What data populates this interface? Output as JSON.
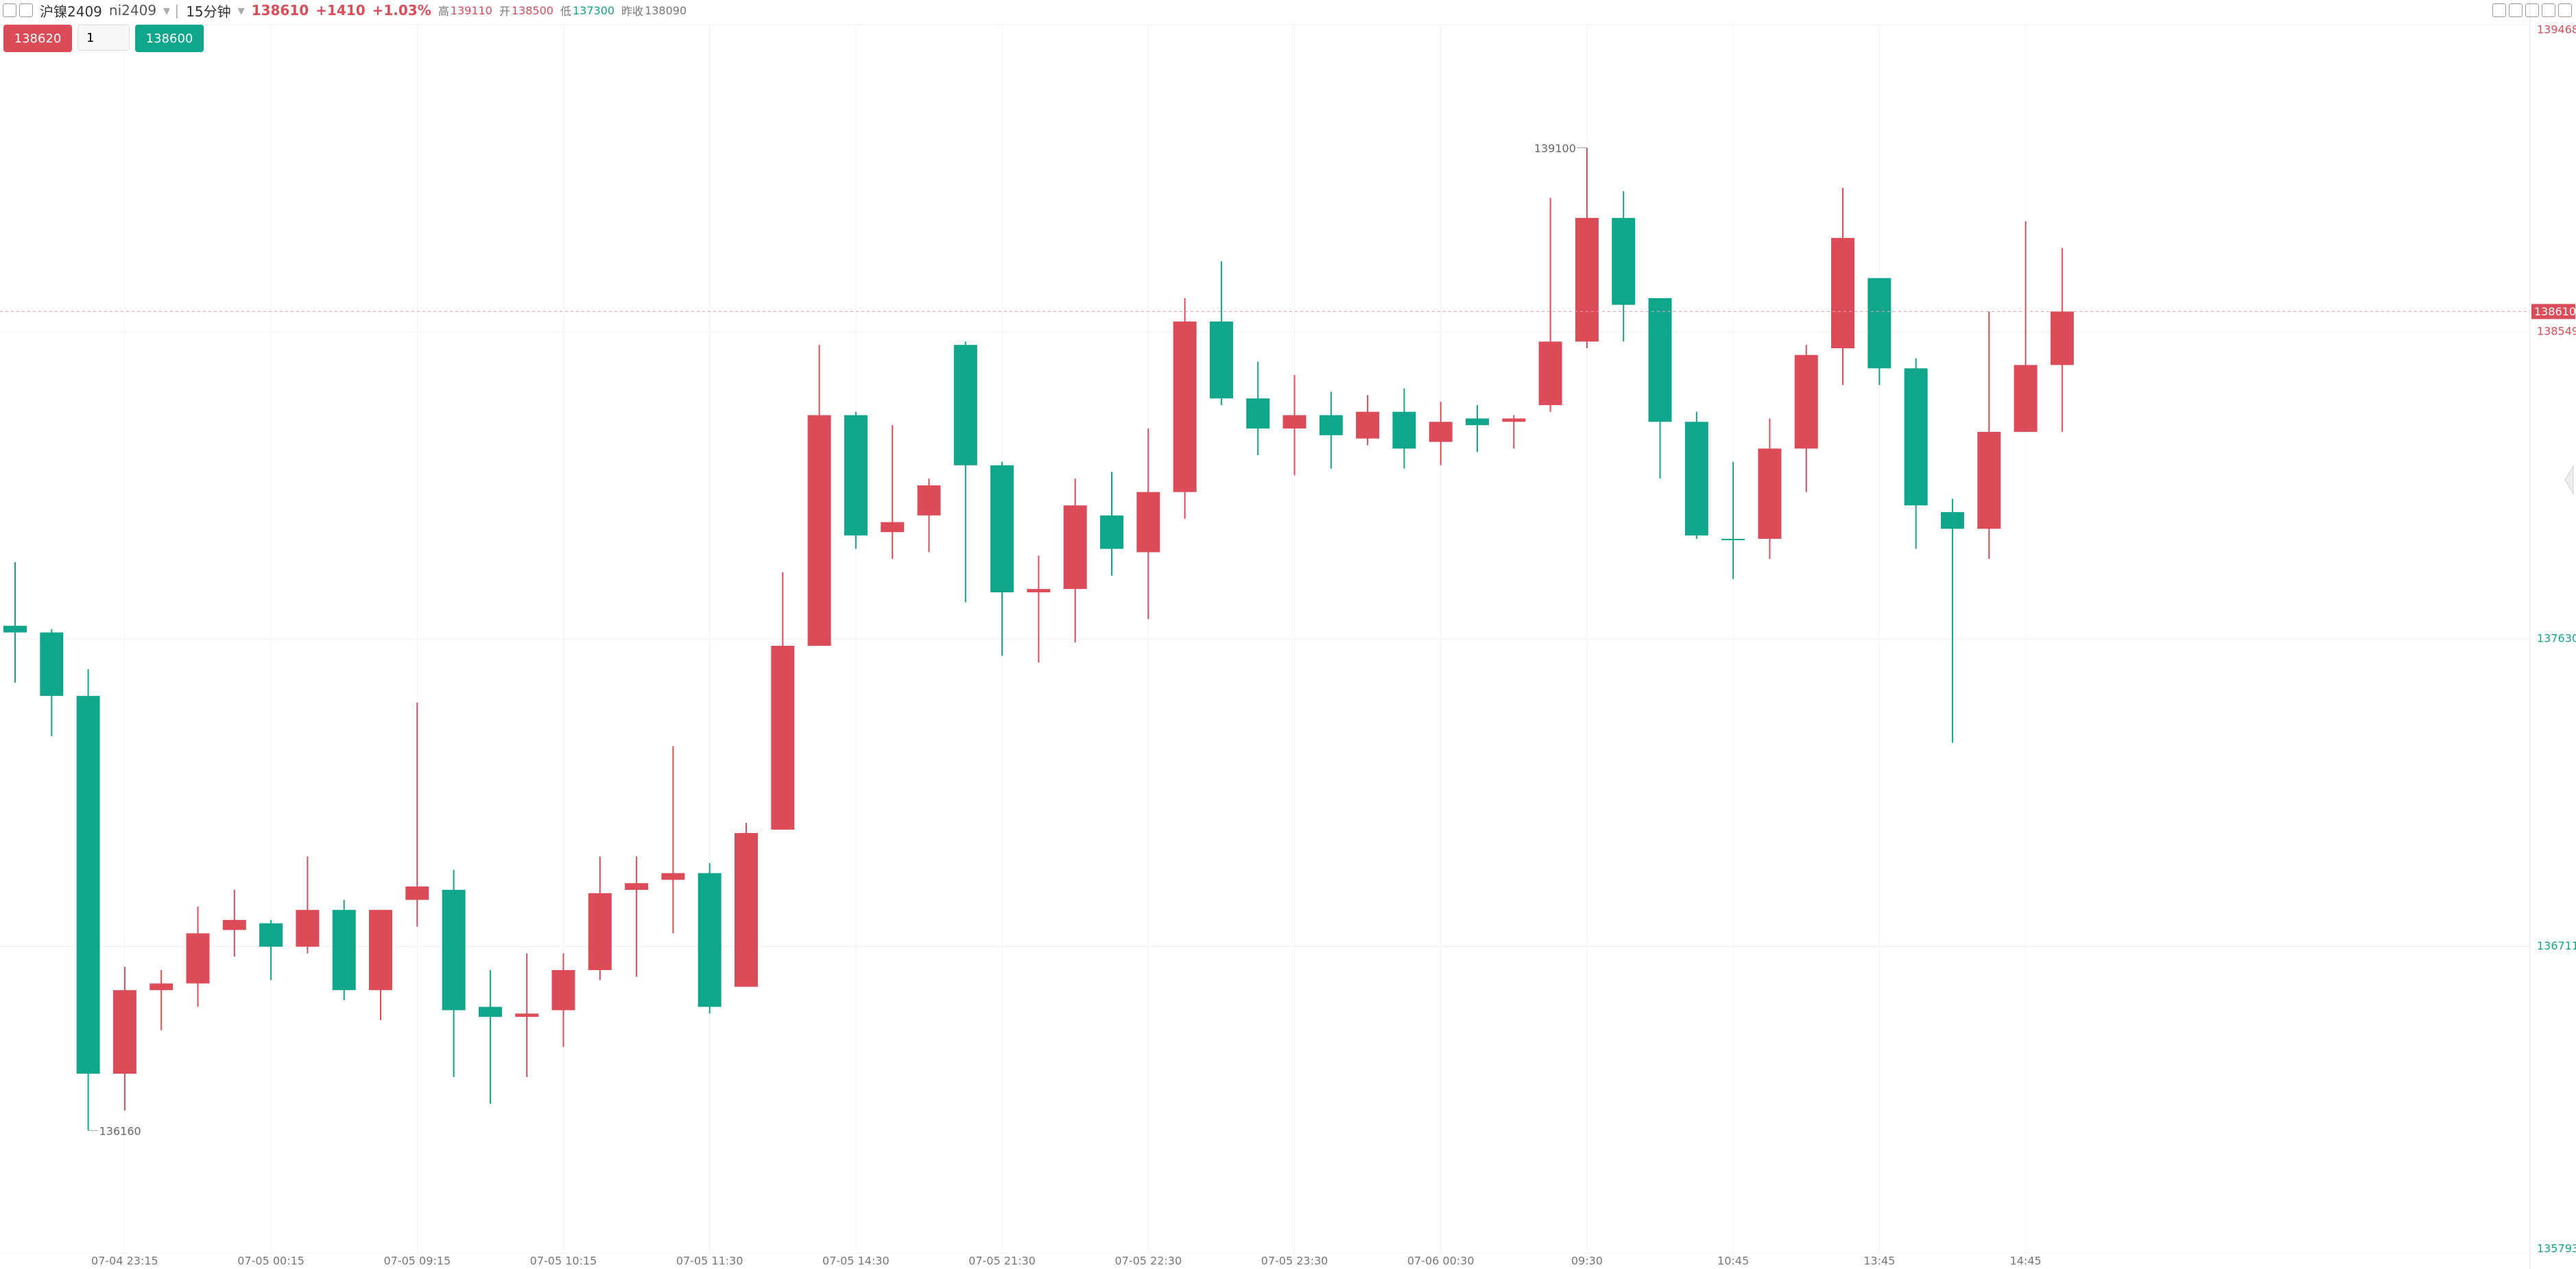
{
  "toolbar": {
    "symbol_name": "沪镍2409",
    "symbol_code": "ni2409",
    "period": "15分钟",
    "last": "138610",
    "change": "+1410",
    "change_pct": "+1.03%",
    "high_label": "高",
    "high": "139110",
    "open_label": "开",
    "open": "138500",
    "low_label": "低",
    "low": "137300",
    "prev_close_label": "昨收",
    "prev_close": "138090",
    "sell_button": "138620",
    "quantity": "1",
    "buy_button": "138600"
  },
  "chart_data": {
    "type": "candlestick",
    "up_color": "#dc4c58",
    "down_color": "#10a68c",
    "categories": [
      null,
      null,
      null,
      "07-04 23:15",
      null,
      null,
      null,
      "07-05 00:15",
      null,
      null,
      null,
      "07-05 09:15",
      null,
      null,
      null,
      "07-05 10:15",
      null,
      null,
      null,
      "07-05 11:30",
      null,
      null,
      null,
      "07-05 14:30",
      null,
      null,
      null,
      "07-05 21:30",
      null,
      null,
      null,
      "07-05 22:30",
      null,
      null,
      null,
      "07-05 23:30",
      null,
      null,
      null,
      "07-06 00:30",
      null,
      null,
      null,
      "09:30",
      null,
      null,
      null,
      "10:45",
      null,
      null,
      null,
      "13:45",
      null,
      null,
      null,
      "14:45",
      null
    ],
    "open": [
      137670,
      137650,
      137460,
      136330,
      136580,
      136600,
      136760,
      136780,
      136710,
      136820,
      136580,
      136850,
      136880,
      136530,
      136500,
      136520,
      136640,
      136880,
      136910,
      136930,
      136590,
      137060,
      137610,
      138300,
      137950,
      138000,
      138510,
      138150,
      137770,
      137780,
      138000,
      137890,
      138070,
      138580,
      138350,
      138260,
      138300,
      138230,
      138310,
      138220,
      138290,
      138280,
      138330,
      138520,
      138890,
      138650,
      138280,
      137930,
      137930,
      138200,
      138500,
      138710,
      138440,
      138010,
      137960,
      138250,
      138450
    ],
    "high": [
      137860,
      137660,
      137540,
      136650,
      136640,
      136830,
      136880,
      136790,
      136980,
      136850,
      136820,
      137440,
      136940,
      136640,
      136690,
      136690,
      136980,
      136980,
      137310,
      136960,
      137080,
      137830,
      138510,
      138310,
      138270,
      138110,
      138520,
      138160,
      137880,
      138110,
      138130,
      138260,
      138650,
      138760,
      138460,
      138420,
      138370,
      138360,
      138380,
      138340,
      138330,
      138300,
      138950,
      139100,
      138970,
      138650,
      138310,
      138160,
      138290,
      138510,
      138980,
      138710,
      138470,
      138050,
      138610,
      138880,
      138800
    ],
    "low": [
      137500,
      137340,
      136160,
      136220,
      136460,
      136530,
      136680,
      136610,
      136690,
      136550,
      136490,
      136770,
      136320,
      136240,
      136320,
      136410,
      136610,
      136620,
      136750,
      136510,
      136590,
      137060,
      137610,
      137900,
      137870,
      137890,
      137740,
      137580,
      137560,
      137620,
      137820,
      137690,
      137990,
      138330,
      138180,
      138120,
      138140,
      138210,
      138140,
      138150,
      138190,
      138200,
      138310,
      138500,
      138520,
      138110,
      137930,
      137810,
      137870,
      138070,
      138390,
      138390,
      137900,
      137320,
      137870,
      138250,
      138250
    ],
    "close": [
      137650,
      137460,
      136330,
      136580,
      136600,
      136750,
      136790,
      136710,
      136820,
      136580,
      136820,
      136890,
      136520,
      136500,
      136510,
      136640,
      136870,
      136900,
      136930,
      136530,
      137050,
      137610,
      138300,
      137940,
      137980,
      138090,
      138150,
      137770,
      137780,
      138030,
      137900,
      138070,
      138580,
      138350,
      138260,
      138300,
      138240,
      138310,
      138200,
      138280,
      138270,
      138290,
      138520,
      138890,
      138630,
      138280,
      137940,
      137930,
      138200,
      138480,
      138830,
      138440,
      138030,
      137960,
      138250,
      138450,
      138610
    ],
    "ylim": [
      135793,
      139468
    ],
    "yticks": [
      139468,
      138549,
      137630,
      136711,
      135793
    ],
    "grid": true
  }
}
